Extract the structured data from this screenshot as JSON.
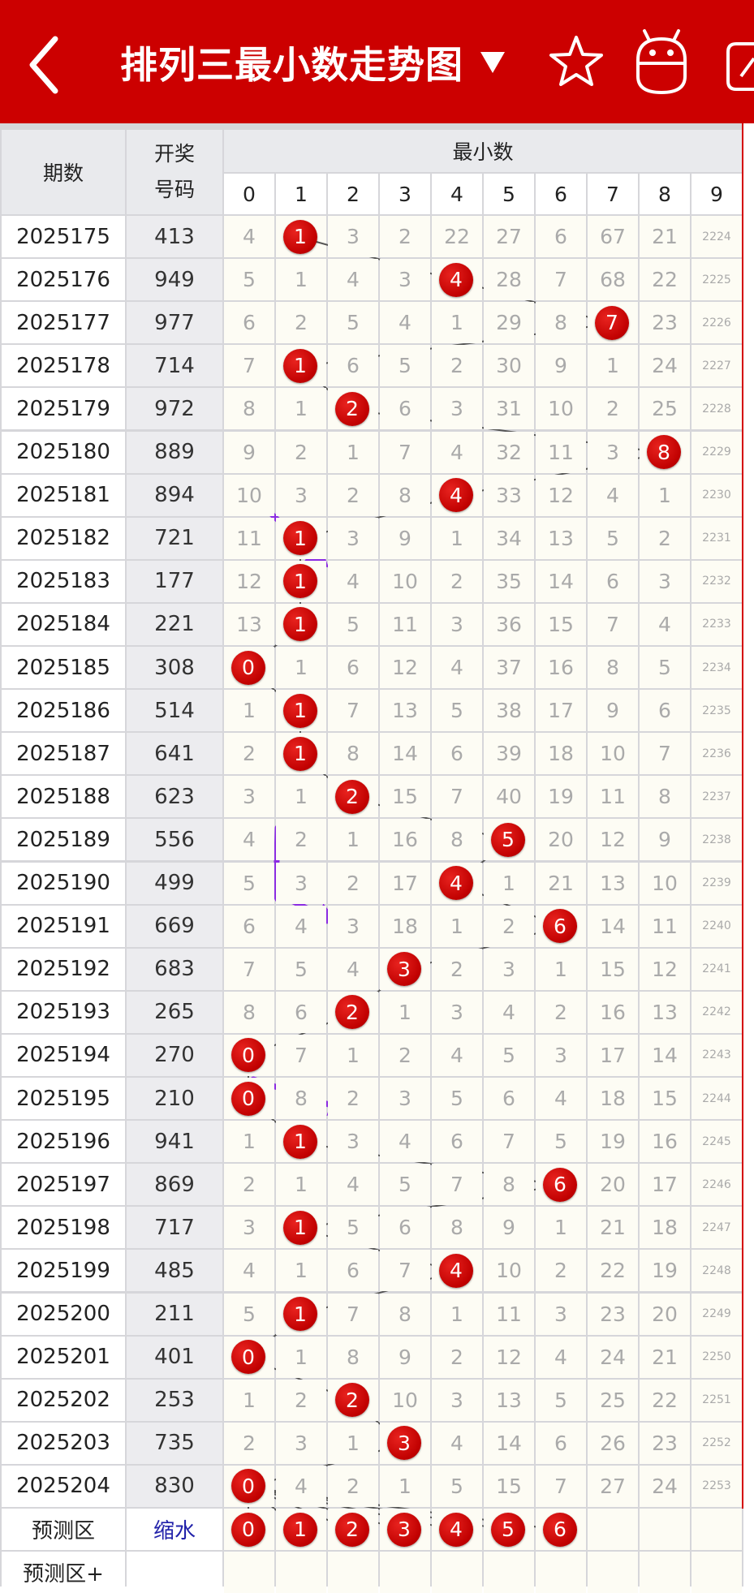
{
  "header": {
    "title": "排列三最小数走势图",
    "dropdown_icon": "triangle-down-icon",
    "back_icon": "chevron-left-icon",
    "star_icon": "star-icon",
    "robot_icon": "robot-icon",
    "edit_icon": "edit-icon",
    "bg_color": "#cc0000"
  },
  "table": {
    "col_period": "期数",
    "col_draw_line1": "开奖",
    "col_draw_line2": "号码",
    "col_group": "最小数",
    "digits": [
      "0",
      "1",
      "2",
      "3",
      "4",
      "5",
      "6",
      "7",
      "8",
      "9"
    ],
    "rows": [
      {
        "period": "2025175",
        "draw": "413",
        "min": 1,
        "cells": [
          "4",
          "1",
          "3",
          "2",
          "22",
          "27",
          "6",
          "67",
          "21",
          "2224"
        ]
      },
      {
        "period": "2025176",
        "draw": "949",
        "min": 4,
        "cells": [
          "5",
          "1",
          "4",
          "3",
          "4",
          "28",
          "7",
          "68",
          "22",
          "2225"
        ]
      },
      {
        "period": "2025177",
        "draw": "977",
        "min": 7,
        "cells": [
          "6",
          "2",
          "5",
          "4",
          "1",
          "29",
          "8",
          "7",
          "23",
          "2226"
        ]
      },
      {
        "period": "2025178",
        "draw": "714",
        "min": 1,
        "cells": [
          "7",
          "1",
          "6",
          "5",
          "2",
          "30",
          "9",
          "1",
          "24",
          "2227"
        ]
      },
      {
        "period": "2025179",
        "draw": "972",
        "min": 2,
        "cells": [
          "8",
          "1",
          "2",
          "6",
          "3",
          "31",
          "10",
          "2",
          "25",
          "2228"
        ]
      },
      {
        "period": "2025180",
        "draw": "889",
        "min": 8,
        "cells": [
          "9",
          "2",
          "1",
          "7",
          "4",
          "32",
          "11",
          "3",
          "8",
          "2229"
        ]
      },
      {
        "period": "2025181",
        "draw": "894",
        "min": 4,
        "cells": [
          "10",
          "3",
          "2",
          "8",
          "4",
          "33",
          "12",
          "4",
          "1",
          "2230"
        ]
      },
      {
        "period": "2025182",
        "draw": "721",
        "min": 1,
        "cells": [
          "11",
          "1",
          "3",
          "9",
          "1",
          "34",
          "13",
          "5",
          "2",
          "2231"
        ]
      },
      {
        "period": "2025183",
        "draw": "177",
        "min": 1,
        "cells": [
          "12",
          "1",
          "4",
          "10",
          "2",
          "35",
          "14",
          "6",
          "3",
          "2232"
        ]
      },
      {
        "period": "2025184",
        "draw": "221",
        "min": 1,
        "cells": [
          "13",
          "1",
          "5",
          "11",
          "3",
          "36",
          "15",
          "7",
          "4",
          "2233"
        ]
      },
      {
        "period": "2025185",
        "draw": "308",
        "min": 0,
        "cells": [
          "0",
          "1",
          "6",
          "12",
          "4",
          "37",
          "16",
          "8",
          "5",
          "2234"
        ]
      },
      {
        "period": "2025186",
        "draw": "514",
        "min": 1,
        "cells": [
          "1",
          "1",
          "7",
          "13",
          "5",
          "38",
          "17",
          "9",
          "6",
          "2235"
        ]
      },
      {
        "period": "2025187",
        "draw": "641",
        "min": 1,
        "cells": [
          "2",
          "1",
          "8",
          "14",
          "6",
          "39",
          "18",
          "10",
          "7",
          "2236"
        ]
      },
      {
        "period": "2025188",
        "draw": "623",
        "min": 2,
        "cells": [
          "3",
          "1",
          "2",
          "15",
          "7",
          "40",
          "19",
          "11",
          "8",
          "2237"
        ]
      },
      {
        "period": "2025189",
        "draw": "556",
        "min": 5,
        "cells": [
          "4",
          "2",
          "1",
          "16",
          "8",
          "5",
          "20",
          "12",
          "9",
          "2238"
        ]
      },
      {
        "period": "2025190",
        "draw": "499",
        "min": 4,
        "cells": [
          "5",
          "3",
          "2",
          "17",
          "4",
          "1",
          "21",
          "13",
          "10",
          "2239"
        ]
      },
      {
        "period": "2025191",
        "draw": "669",
        "min": 6,
        "cells": [
          "6",
          "4",
          "3",
          "18",
          "1",
          "2",
          "6",
          "14",
          "11",
          "2240"
        ]
      },
      {
        "period": "2025192",
        "draw": "683",
        "min": 3,
        "cells": [
          "7",
          "5",
          "4",
          "3",
          "2",
          "3",
          "1",
          "15",
          "12",
          "2241"
        ]
      },
      {
        "period": "2025193",
        "draw": "265",
        "min": 2,
        "cells": [
          "8",
          "6",
          "2",
          "1",
          "3",
          "4",
          "2",
          "16",
          "13",
          "2242"
        ]
      },
      {
        "period": "2025194",
        "draw": "270",
        "min": 0,
        "cells": [
          "0",
          "7",
          "1",
          "2",
          "4",
          "5",
          "3",
          "17",
          "14",
          "2243"
        ]
      },
      {
        "period": "2025195",
        "draw": "210",
        "min": 0,
        "cells": [
          "0",
          "8",
          "2",
          "3",
          "5",
          "6",
          "4",
          "18",
          "15",
          "2244"
        ]
      },
      {
        "period": "2025196",
        "draw": "941",
        "min": 1,
        "cells": [
          "1",
          "1",
          "3",
          "4",
          "6",
          "7",
          "5",
          "19",
          "16",
          "2245"
        ]
      },
      {
        "period": "2025197",
        "draw": "869",
        "min": 6,
        "cells": [
          "2",
          "1",
          "4",
          "5",
          "7",
          "8",
          "6",
          "20",
          "17",
          "2246"
        ]
      },
      {
        "period": "2025198",
        "draw": "717",
        "min": 1,
        "cells": [
          "3",
          "1",
          "5",
          "6",
          "8",
          "9",
          "1",
          "21",
          "18",
          "2247"
        ]
      },
      {
        "period": "2025199",
        "draw": "485",
        "min": 4,
        "cells": [
          "4",
          "1",
          "6",
          "7",
          "4",
          "10",
          "2",
          "22",
          "19",
          "2248"
        ]
      },
      {
        "period": "2025200",
        "draw": "211",
        "min": 1,
        "cells": [
          "5",
          "1",
          "7",
          "8",
          "1",
          "11",
          "3",
          "23",
          "20",
          "2249"
        ]
      },
      {
        "period": "2025201",
        "draw": "401",
        "min": 0,
        "cells": [
          "0",
          "1",
          "8",
          "9",
          "2",
          "12",
          "4",
          "24",
          "21",
          "2250"
        ]
      },
      {
        "period": "2025202",
        "draw": "253",
        "min": 2,
        "cells": [
          "1",
          "2",
          "2",
          "10",
          "3",
          "13",
          "5",
          "25",
          "22",
          "2251"
        ]
      },
      {
        "period": "2025203",
        "draw": "735",
        "min": 3,
        "cells": [
          "2",
          "3",
          "1",
          "3",
          "4",
          "14",
          "6",
          "26",
          "23",
          "2252"
        ]
      },
      {
        "period": "2025204",
        "draw": "830",
        "min": 0,
        "cells": [
          "0",
          "4",
          "2",
          "1",
          "5",
          "15",
          "7",
          "27",
          "24",
          "2253"
        ]
      }
    ],
    "predict_label": "预测区",
    "predict_link": "缩水",
    "predict_balls": [
      "0",
      "1",
      "2",
      "3",
      "4",
      "5",
      "6"
    ],
    "predict_plus_label": "预测区+"
  }
}
